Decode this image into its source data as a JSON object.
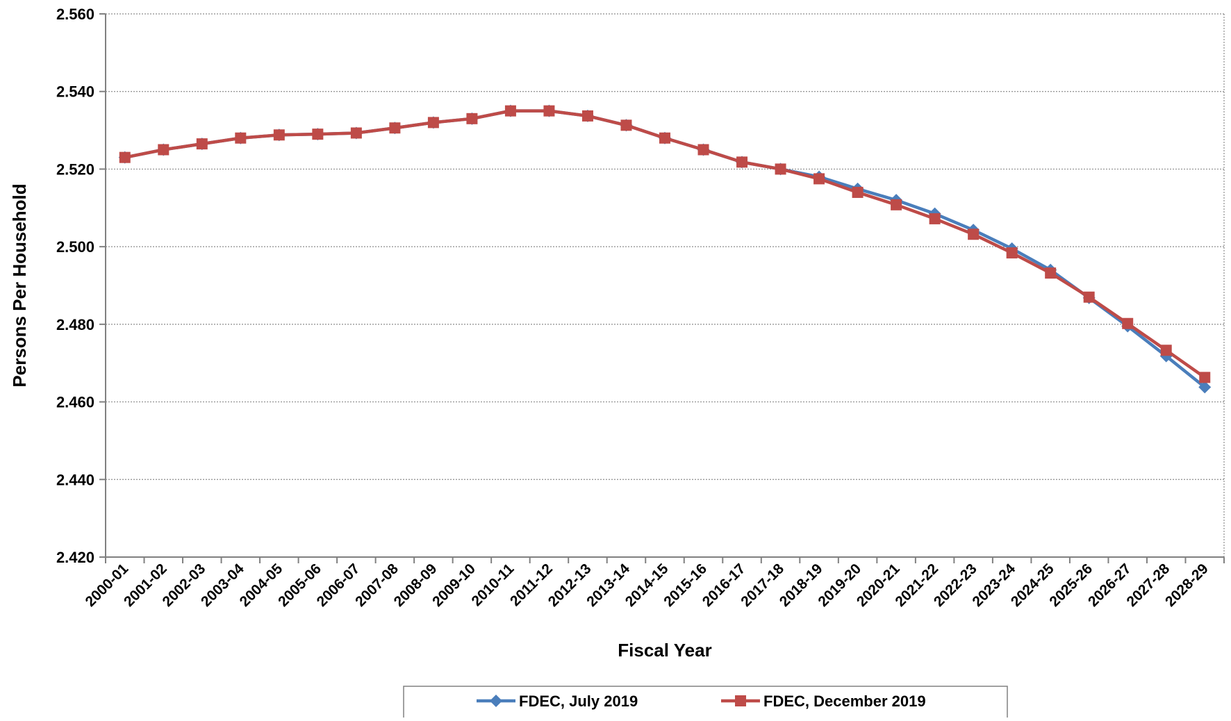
{
  "chart_data": {
    "type": "line",
    "xlabel": "Fiscal Year",
    "ylabel": "Persons Per Household",
    "ylim": [
      2.42,
      2.56
    ],
    "yticks": [
      "2.560",
      "2.540",
      "2.520",
      "2.500",
      "2.480",
      "2.460",
      "2.440",
      "2.420"
    ],
    "ytick_values": [
      2.56,
      2.54,
      2.52,
      2.5,
      2.48,
      2.46,
      2.44,
      2.42
    ],
    "grid": "horizontal",
    "legend_position": "bottom",
    "categories": [
      "2000-01",
      "2001-02",
      "2002-03",
      "2003-04",
      "2004-05",
      "2005-06",
      "2006-07",
      "2007-08",
      "2008-09",
      "2009-10",
      "2010-11",
      "2011-12",
      "2012-13",
      "2013-14",
      "2014-15",
      "2015-16",
      "2016-17",
      "2017-18",
      "2018-19",
      "2019-20",
      "2020-21",
      "2021-22",
      "2022-23",
      "2023-24",
      "2024-25",
      "2025-26",
      "2026-27",
      "2027-28",
      "2028-29"
    ],
    "series": [
      {
        "name": "FDEC, July 2019",
        "color": "#4A7EBB",
        "marker": "diamond",
        "values": [
          2.523,
          2.525,
          2.5265,
          2.528,
          2.5288,
          2.529,
          2.5293,
          2.5306,
          2.532,
          2.533,
          2.535,
          2.535,
          2.5337,
          2.5313,
          2.528,
          2.525,
          2.5218,
          2.52,
          2.518,
          2.5149,
          2.512,
          2.5085,
          2.5043,
          2.4995,
          2.494,
          2.4868,
          2.4795,
          2.4718,
          2.4638
        ]
      },
      {
        "name": "FDEC, December 2019",
        "color": "#BE4B48",
        "marker": "square",
        "values": [
          2.523,
          2.525,
          2.5265,
          2.528,
          2.5288,
          2.529,
          2.5293,
          2.5306,
          2.532,
          2.533,
          2.535,
          2.535,
          2.5337,
          2.5313,
          2.528,
          2.525,
          2.5218,
          2.52,
          2.5175,
          2.514,
          2.5108,
          2.5072,
          2.5032,
          2.4984,
          2.4932,
          2.487,
          2.4802,
          2.4733,
          2.4663
        ]
      }
    ]
  }
}
